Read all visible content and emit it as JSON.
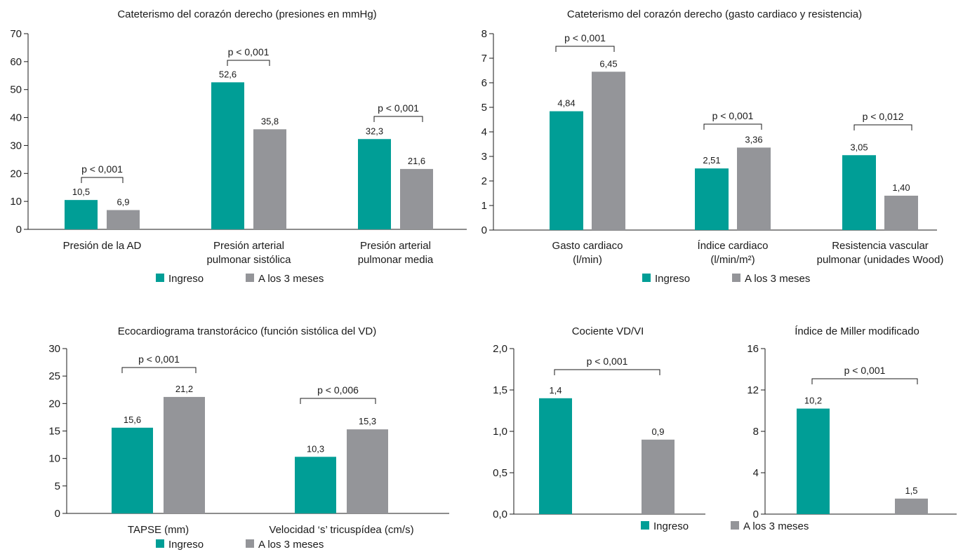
{
  "colors": {
    "ingreso": "#009e96",
    "meses": "#949599"
  },
  "legend_labels": [
    "Ingreso",
    "A los 3 meses"
  ],
  "chart_data": [
    {
      "type": "bar",
      "title": "Cateterismo del corazón derecho (presiones en mmHg)",
      "categories": [
        [
          "Presión de la AD"
        ],
        [
          "Presión arterial",
          "pulmonar sistólica"
        ],
        [
          "Presión arterial",
          "pulmonar media"
        ]
      ],
      "series": [
        {
          "name": "Ingreso",
          "values": [
            10.5,
            52.6,
            32.3
          ],
          "labels": [
            "10,5",
            "52,6",
            "32,3"
          ]
        },
        {
          "name": "A los 3 meses",
          "values": [
            6.9,
            35.8,
            21.6
          ],
          "labels": [
            "6,9",
            "35,8",
            "21,6"
          ]
        }
      ],
      "p_values": [
        "p < 0,001",
        "p < 0,001",
        "p < 0,001"
      ],
      "ylim": [
        0,
        70
      ],
      "yticks": [
        0,
        10,
        20,
        30,
        40,
        50,
        60,
        70
      ],
      "ytick_labels": [
        "0",
        "10",
        "20",
        "30",
        "40",
        "50",
        "60",
        "70"
      ],
      "legend": "bottom"
    },
    {
      "type": "bar",
      "title": "Cateterismo del corazón derecho (gasto cardiaco y resistencia)",
      "categories": [
        [
          "Gasto cardiaco",
          "(l/min)"
        ],
        [
          "Índice cardiaco",
          "(l/min/m²)"
        ],
        [
          "Resistencia vascular",
          "pulmonar (unidades Wood)"
        ]
      ],
      "series": [
        {
          "name": "Ingreso",
          "values": [
            4.84,
            2.51,
            3.05
          ],
          "labels": [
            "4,84",
            "2,51",
            "3,05"
          ]
        },
        {
          "name": "A los 3 meses",
          "values": [
            6.45,
            3.36,
            1.4
          ],
          "labels": [
            "6,45",
            "3,36",
            "1,40"
          ]
        }
      ],
      "p_values": [
        "p < 0,001",
        "p < 0,001",
        "p < 0,012"
      ],
      "ylim": [
        0,
        8
      ],
      "yticks": [
        0,
        1,
        2,
        3,
        4,
        5,
        6,
        7,
        8
      ],
      "ytick_labels": [
        "0",
        "1",
        "2",
        "3",
        "4",
        "5",
        "6",
        "7",
        "8"
      ],
      "legend": "bottom"
    },
    {
      "type": "bar",
      "title": "Ecocardiograma transtorácico (función sistólica del VD)",
      "categories": [
        [
          "TAPSE (mm)"
        ],
        [
          "Velocidad ‘s’ tricuspídea (cm/s)"
        ]
      ],
      "series": [
        {
          "name": "Ingreso",
          "values": [
            15.6,
            10.3
          ],
          "labels": [
            "15,6",
            "10,3"
          ]
        },
        {
          "name": "A los 3 meses",
          "values": [
            21.2,
            15.3
          ],
          "labels": [
            "21,2",
            "15,3"
          ]
        }
      ],
      "p_values": [
        "p < 0,001",
        "p < 0,006"
      ],
      "ylim": [
        0,
        30
      ],
      "yticks": [
        0,
        5,
        10,
        15,
        20,
        25,
        30
      ],
      "ytick_labels": [
        "0",
        "5",
        "10",
        "15",
        "20",
        "25",
        "30"
      ],
      "legend": "bottom"
    },
    {
      "type": "bar",
      "title": "Cociente VD/VI",
      "categories": [
        [
          ""
        ]
      ],
      "series": [
        {
          "name": "Ingreso",
          "values": [
            1.4
          ],
          "labels": [
            "1,4"
          ]
        },
        {
          "name": "A los 3 meses",
          "values": [
            0.9
          ],
          "labels": [
            "0,9"
          ]
        }
      ],
      "p_values": [
        "p < 0,001"
      ],
      "ylim": [
        0,
        2
      ],
      "yticks": [
        0,
        0.5,
        1,
        1.5,
        2
      ],
      "ytick_labels": [
        "0,0",
        "0,5",
        "1,0",
        "1,5",
        "2,0"
      ],
      "legend": "bottom (shared)"
    },
    {
      "type": "bar",
      "title": "Índice de Miller modificado",
      "categories": [
        [
          ""
        ]
      ],
      "series": [
        {
          "name": "Ingreso",
          "values": [
            10.2
          ],
          "labels": [
            "10,2"
          ]
        },
        {
          "name": "A los 3 meses",
          "values": [
            1.5
          ],
          "labels": [
            "1,5"
          ]
        }
      ],
      "p_values": [
        "p < 0,001"
      ],
      "ylim": [
        0,
        16
      ],
      "yticks": [
        0,
        4,
        8,
        12,
        16
      ],
      "ytick_labels": [
        "0",
        "4",
        "8",
        "12",
        "16"
      ],
      "legend": "bottom (shared)"
    }
  ]
}
